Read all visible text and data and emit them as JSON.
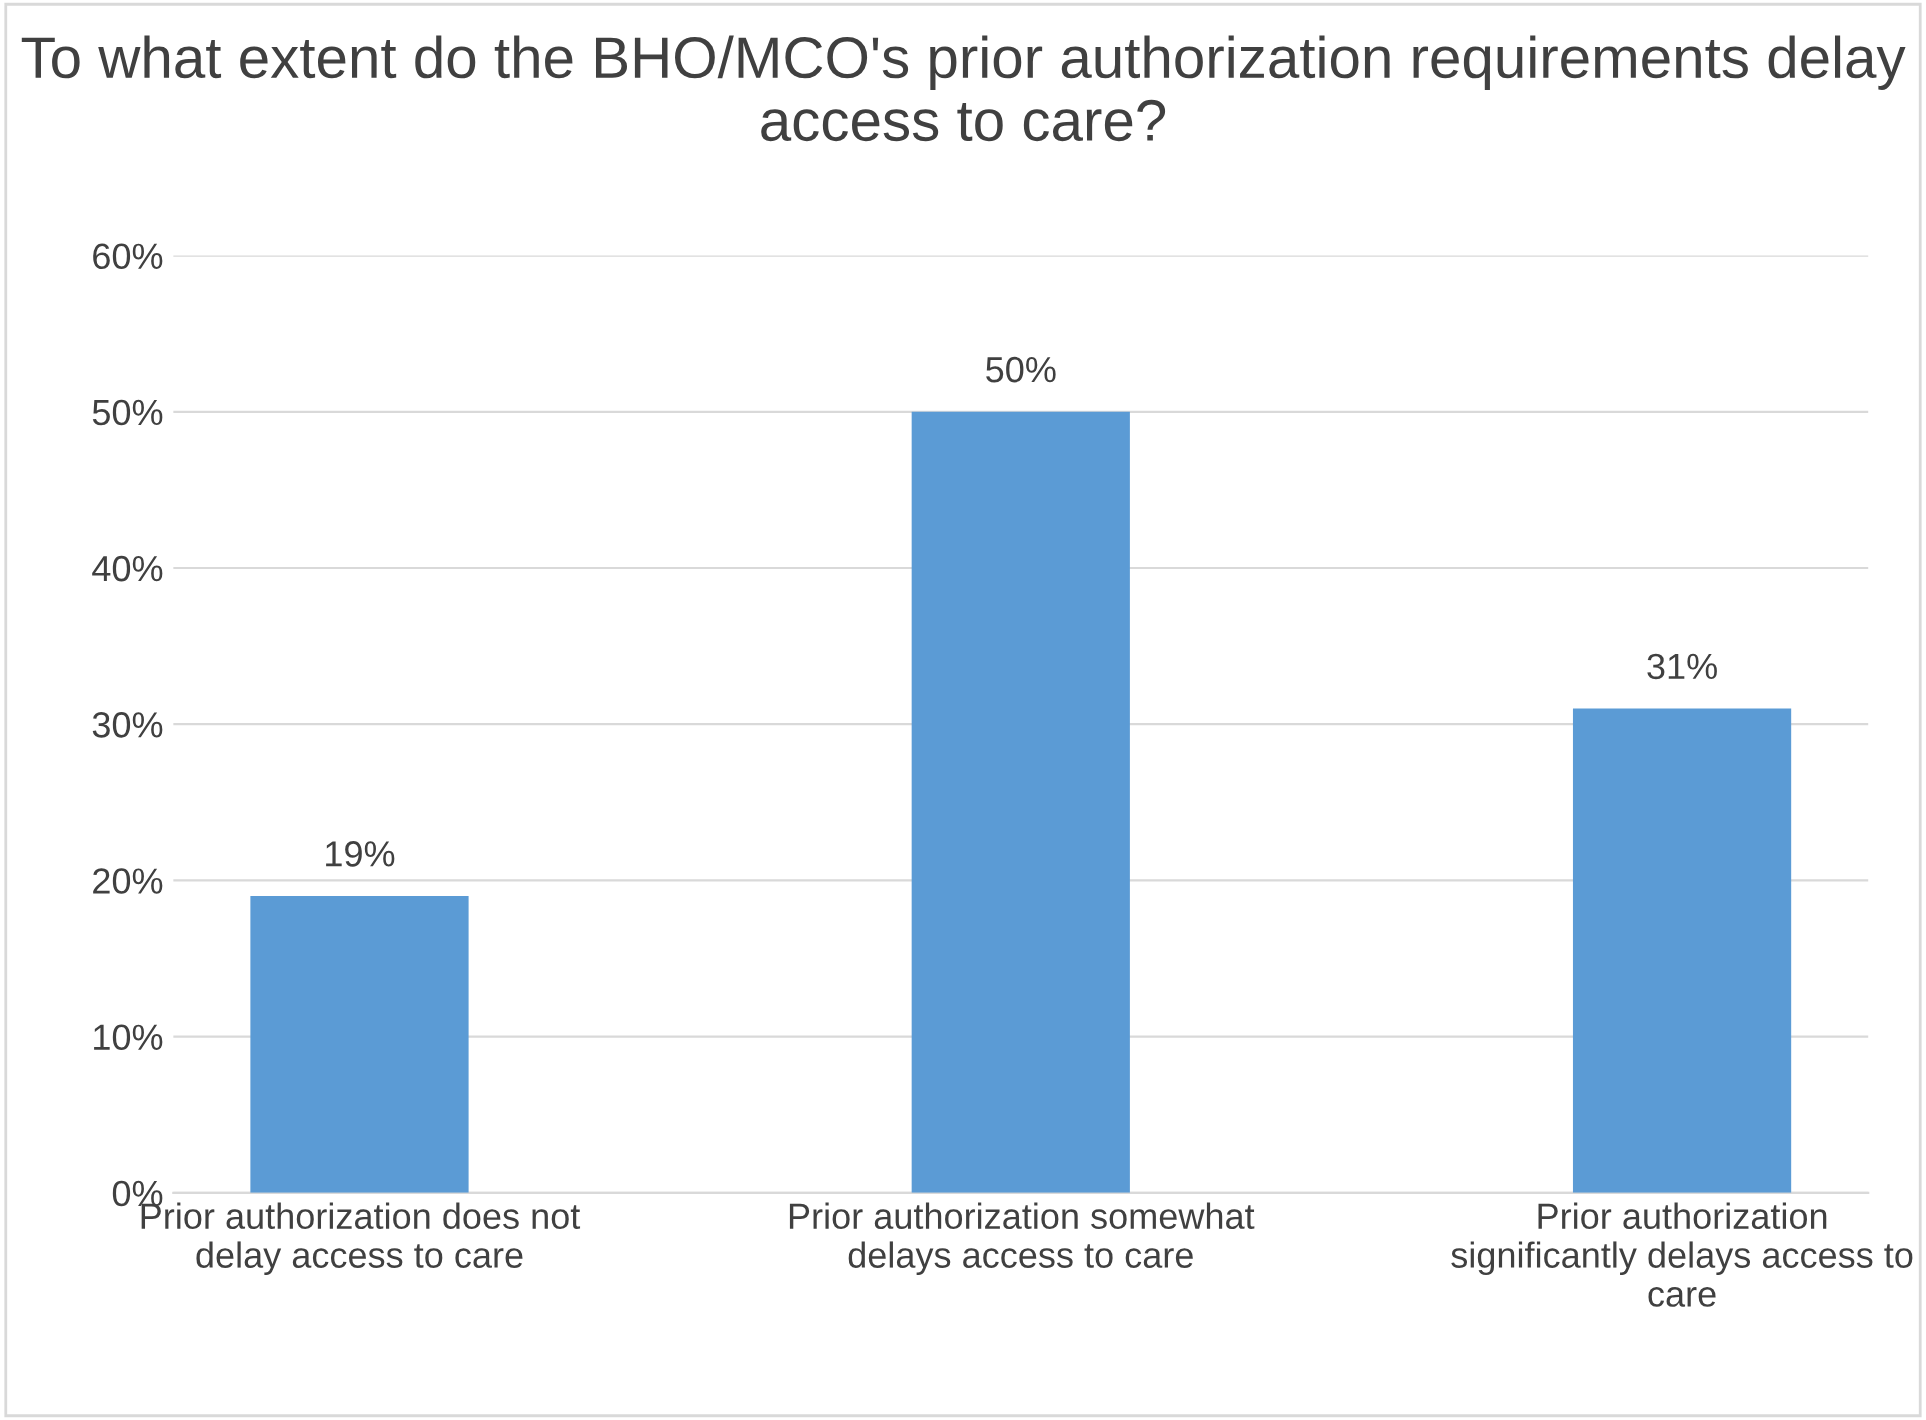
{
  "chart_data": {
    "type": "bar",
    "title": "To what extent do the BHO/MCO's prior authorization requirements delay access to care?",
    "categories": [
      "Prior authorization does not delay access to care",
      "Prior authorization somewhat delays access to care",
      "Prior authorization significantly delays access to care"
    ],
    "values": [
      19,
      50,
      31
    ],
    "color": "#5b9bd5",
    "ylim": [
      0,
      60
    ],
    "yticks": [
      {
        "value": 0,
        "label": "0%"
      },
      {
        "value": 10,
        "label": "10%"
      },
      {
        "value": 20,
        "label": "20%"
      },
      {
        "value": 30,
        "label": "30%"
      },
      {
        "value": 40,
        "label": "40%"
      },
      {
        "value": 50,
        "label": "50%"
      },
      {
        "value": 60,
        "label": "60%"
      }
    ],
    "value_labels": [
      "19%",
      "50%",
      "31%"
    ],
    "grid": "y",
    "legend": false
  }
}
